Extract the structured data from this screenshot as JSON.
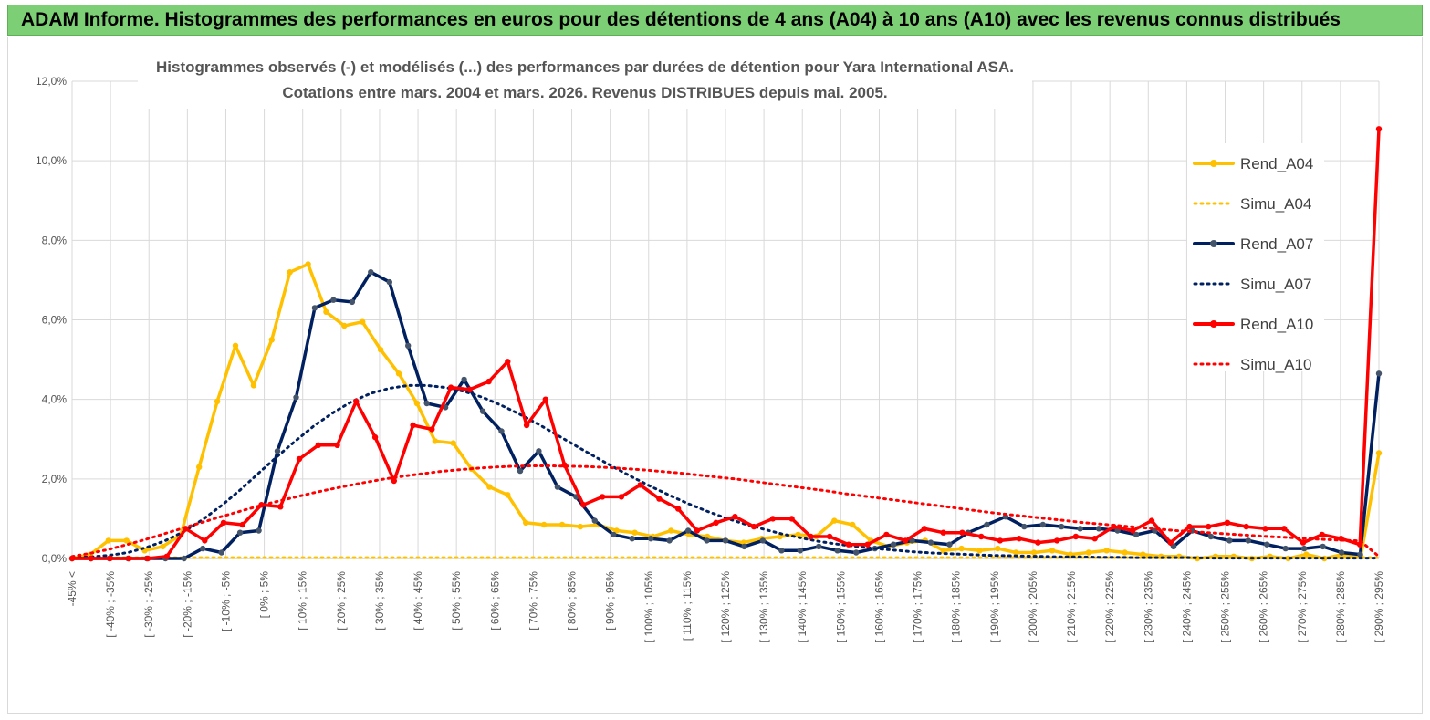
{
  "banner": {
    "title": "ADAM Informe. Histogrammes des performances en euros pour des détentions de 4 ans (A04) à 10 ans (A10) avec les revenus connus distribués"
  },
  "chart_data": {
    "type": "line",
    "title_lines": [
      "Histogrammes observés (-) et modélisés (...) des performances par durées de détention pour Yara International ASA.",
      "Cotations entre mars. 2004 et mars. 2026. Revenus DISTRIBUES depuis mai. 2005."
    ],
    "ylim": [
      0,
      12
    ],
    "y_ticks": [
      0,
      2,
      4,
      6,
      8,
      10,
      12
    ],
    "y_tick_labels": [
      "0,0%",
      "2,0%",
      "4,0%",
      "6,0%",
      "8,0%",
      "10,0%",
      "12,0%"
    ],
    "x_tick_labels": [
      "-45% <",
      "[ -40% ; -35%",
      "[ -30% ; -25%",
      "[ -20% ; -15%",
      "[ -10% ; -5%",
      "[ 0% ; 5%",
      "[ 10% ; 15%",
      "[ 20% ; 25%",
      "[ 30% ; 35%",
      "[ 40% ; 45%",
      "[ 50% ; 55%",
      "[ 60% ; 65%",
      "[ 70% ; 75%",
      "[ 80% ; 85%",
      "[ 90% ; 95%",
      "[ 100% ; 105%",
      "[ 110% ; 115%",
      "[ 120% ; 125%",
      "[ 130% ; 135%",
      "[ 140% ; 145%",
      "[ 150% ; 155%",
      "[ 160% ; 165%",
      "[ 170% ; 175%",
      "[ 180% ; 185%",
      "[ 190% ; 195%",
      "[ 200% ; 205%",
      "[ 210% ; 215%",
      "[ 220% ; 225%",
      "[ 230% ; 235%",
      "[ 240% ; 245%",
      "[ 250% ; 255%",
      "[ 260% ; 265%",
      "[ 270% ; 275%",
      "[ 280% ; 285%",
      "[ 290% ; 295%"
    ],
    "legend_position": "right",
    "series": [
      {
        "name": "Rend_A04",
        "color": "#ffc000",
        "style": "solid",
        "values": [
          0.0,
          0.1,
          0.45,
          0.45,
          0.2,
          0.3,
          0.6,
          2.3,
          3.95,
          5.35,
          4.35,
          5.5,
          7.2,
          7.4,
          6.2,
          5.85,
          5.95,
          5.25,
          4.65,
          3.9,
          2.95,
          2.9,
          2.25,
          1.8,
          1.6,
          0.9,
          0.85,
          0.85,
          0.8,
          0.85,
          0.7,
          0.65,
          0.55,
          0.7,
          0.6,
          0.55,
          0.45,
          0.4,
          0.5,
          0.55,
          0.6,
          0.55,
          0.95,
          0.85,
          0.45,
          0.3,
          0.4,
          0.45,
          0.2,
          0.25,
          0.2,
          0.25,
          0.15,
          0.15,
          0.2,
          0.1,
          0.15,
          0.2,
          0.15,
          0.1,
          0.05,
          0.05,
          0.0,
          0.05,
          0.05,
          0.0,
          0.05,
          0.0,
          0.1,
          0.0,
          0.1,
          0.05,
          2.65
        ]
      },
      {
        "name": "Simu_A04",
        "color": "#ffc000",
        "style": "dotted",
        "values": [
          0.02,
          0.02,
          0.02,
          0.02,
          0.02,
          0.02,
          0.02,
          0.02,
          0.02,
          0.02,
          0.02,
          0.02,
          0.02,
          0.02,
          0.02,
          0.02,
          0.02,
          0.02,
          0.02,
          0.02,
          0.02,
          0.02,
          0.02,
          0.02,
          0.02,
          0.02,
          0.02,
          0.02,
          0.02,
          0.02,
          0.02,
          0.02,
          0.02,
          0.02,
          0.02,
          0.02,
          0.02,
          0.02,
          0.02,
          0.02,
          0.02,
          0.02,
          0.02,
          0.02,
          0.02,
          0.02,
          0.02,
          0.02,
          0.02,
          0.02,
          0.02,
          0.02,
          0.02,
          0.02,
          0.02,
          0.02,
          0.02,
          0.02,
          0.02,
          0.02,
          0.02,
          0.02,
          0.02,
          0.02,
          0.02,
          0.02,
          0.02,
          0.02,
          0.02,
          0.02,
          0.02,
          0.02,
          0.02
        ]
      },
      {
        "name": "Rend_A07",
        "color": "#002060",
        "style": "solid",
        "values": [
          0.0,
          0.0,
          0.0,
          0.0,
          0.0,
          0.0,
          0.0,
          0.25,
          0.15,
          0.65,
          0.7,
          2.7,
          4.05,
          6.3,
          6.5,
          6.45,
          7.2,
          6.95,
          5.35,
          3.9,
          3.8,
          4.5,
          3.7,
          3.2,
          2.2,
          2.7,
          1.8,
          1.55,
          0.95,
          0.6,
          0.5,
          0.5,
          0.45,
          0.7,
          0.45,
          0.45,
          0.3,
          0.45,
          0.2,
          0.2,
          0.3,
          0.2,
          0.15,
          0.25,
          0.35,
          0.45,
          0.4,
          0.35,
          0.65,
          0.85,
          1.05,
          0.8,
          0.85,
          0.8,
          0.75,
          0.75,
          0.7,
          0.6,
          0.7,
          0.3,
          0.7,
          0.55,
          0.45,
          0.45,
          0.35,
          0.25,
          0.25,
          0.3,
          0.15,
          0.1,
          4.65
        ]
      },
      {
        "name": "Simu_A07",
        "color": "#002060",
        "style": "dotted",
        "values": [
          0.02,
          0.04,
          0.08,
          0.15,
          0.28,
          0.45,
          0.68,
          0.98,
          1.33,
          1.72,
          2.15,
          2.57,
          2.97,
          3.35,
          3.67,
          3.95,
          4.15,
          4.28,
          4.35,
          4.35,
          4.3,
          4.2,
          4.05,
          3.85,
          3.62,
          3.37,
          3.1,
          2.83,
          2.56,
          2.3,
          2.05,
          1.81,
          1.59,
          1.38,
          1.19,
          1.02,
          0.87,
          0.74,
          0.62,
          0.52,
          0.43,
          0.36,
          0.3,
          0.25,
          0.21,
          0.17,
          0.14,
          0.12,
          0.1,
          0.08,
          0.07,
          0.06,
          0.05,
          0.04,
          0.04,
          0.03,
          0.03,
          0.02,
          0.02,
          0.02,
          0.02,
          0.01,
          0.01,
          0.01,
          0.01,
          0.01,
          0.01,
          0.01,
          0.01,
          0.01,
          0.01
        ]
      },
      {
        "name": "Rend_A10",
        "color": "#ff0000",
        "style": "solid",
        "values": [
          0.0,
          0.0,
          0.0,
          0.0,
          0.0,
          0.05,
          0.75,
          0.45,
          0.9,
          0.85,
          1.35,
          1.3,
          2.5,
          2.85,
          2.85,
          3.95,
          3.05,
          1.95,
          3.35,
          3.25,
          4.3,
          4.25,
          4.45,
          4.95,
          3.35,
          4.0,
          2.35,
          1.35,
          1.55,
          1.55,
          1.85,
          1.5,
          1.25,
          0.7,
          0.9,
          1.05,
          0.8,
          1.0,
          1.0,
          0.55,
          0.55,
          0.35,
          0.35,
          0.6,
          0.45,
          0.75,
          0.65,
          0.65,
          0.55,
          0.45,
          0.5,
          0.4,
          0.45,
          0.55,
          0.5,
          0.8,
          0.7,
          0.95,
          0.4,
          0.8,
          0.8,
          0.9,
          0.8,
          0.75,
          0.75,
          0.4,
          0.6,
          0.5,
          0.35,
          10.8
        ]
      },
      {
        "name": "Simu_A10",
        "color": "#ff0000",
        "style": "dotted",
        "values": [
          0.05,
          0.13,
          0.23,
          0.35,
          0.48,
          0.62,
          0.76,
          0.9,
          1.04,
          1.17,
          1.3,
          1.42,
          1.53,
          1.64,
          1.74,
          1.83,
          1.92,
          2.0,
          2.07,
          2.13,
          2.19,
          2.23,
          2.27,
          2.3,
          2.32,
          2.33,
          2.33,
          2.32,
          2.31,
          2.29,
          2.26,
          2.23,
          2.19,
          2.15,
          2.1,
          2.05,
          2.0,
          1.94,
          1.88,
          1.82,
          1.76,
          1.7,
          1.63,
          1.57,
          1.51,
          1.45,
          1.39,
          1.33,
          1.27,
          1.21,
          1.15,
          1.1,
          1.05,
          1.0,
          0.95,
          0.9,
          0.86,
          0.82,
          0.78,
          0.74,
          0.7,
          0.67,
          0.64,
          0.61,
          0.58,
          0.55,
          0.53,
          0.5,
          0.48,
          0.46,
          0.44,
          0.05
        ]
      }
    ]
  }
}
